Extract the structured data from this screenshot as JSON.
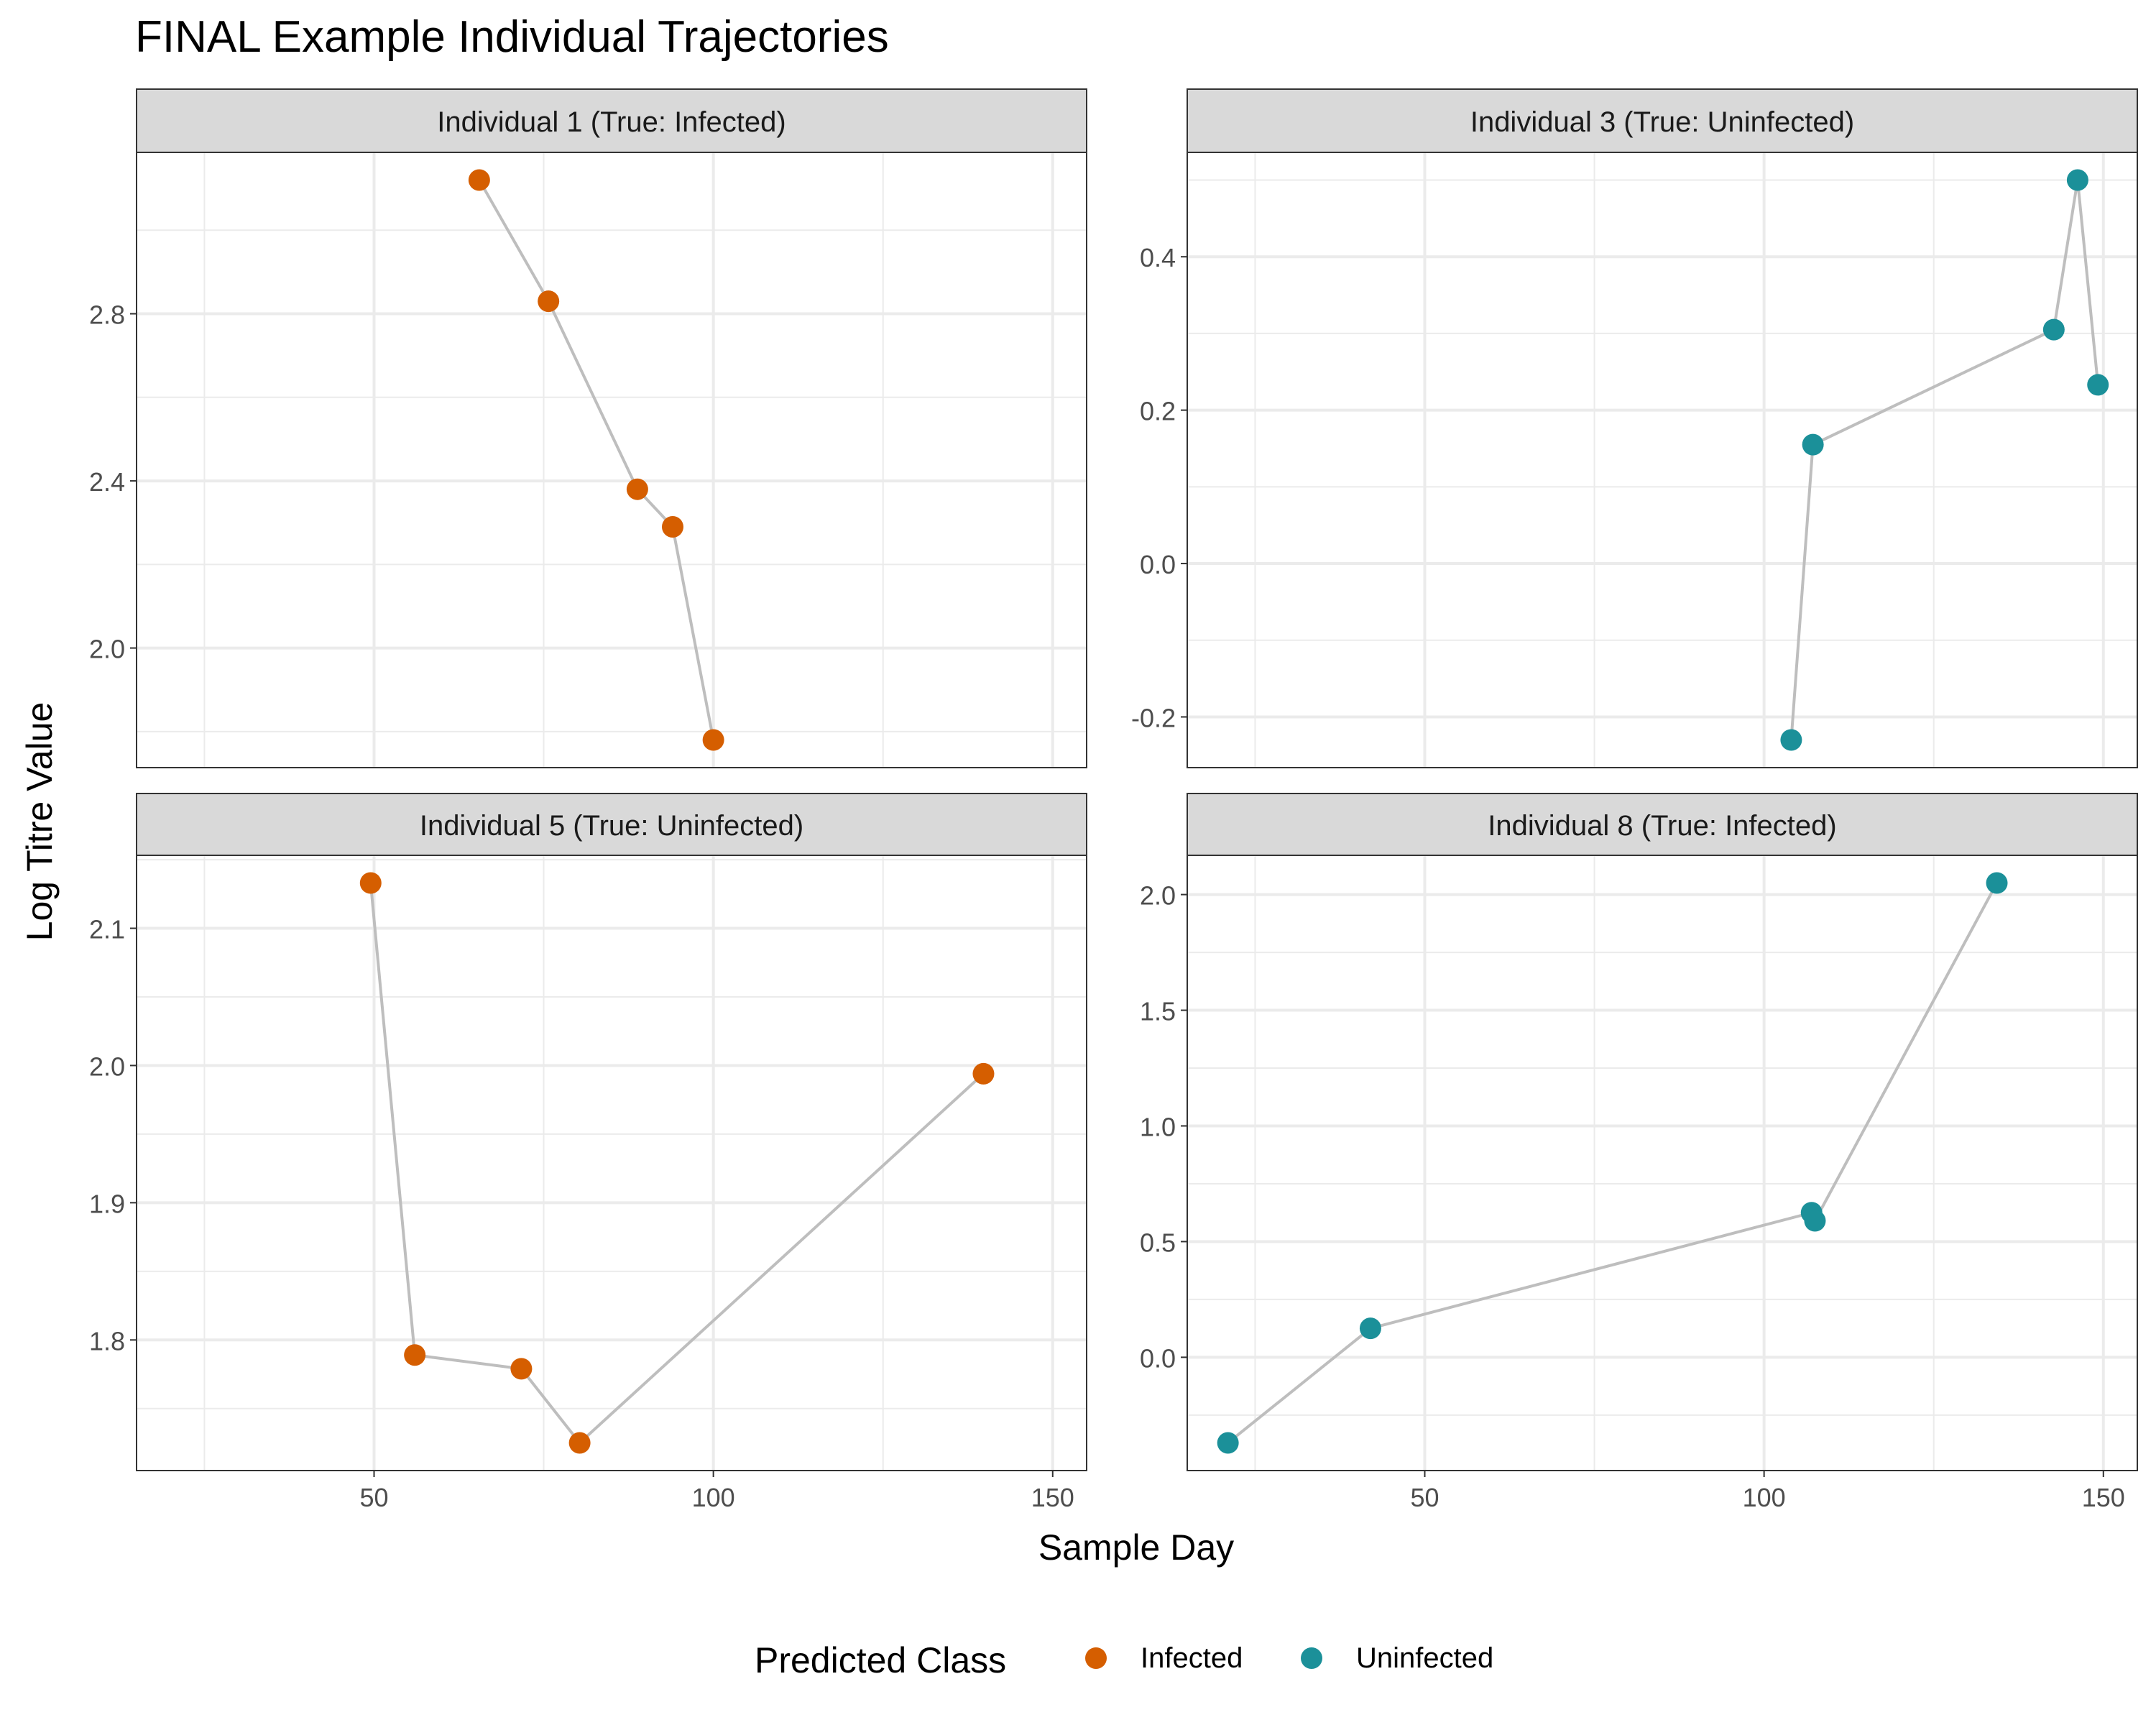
{
  "chart_data": {
    "type": "scatter",
    "title": "FINAL Example Individual Trajectories",
    "xlabel": "Sample Day",
    "ylabel": "Log Titre Value",
    "legend": {
      "title": "Predicted Class",
      "position": "bottom",
      "entries": [
        {
          "label": "Infected",
          "color": "#D55E00"
        },
        {
          "label": "Uninfected",
          "color": "#1B9099"
        }
      ]
    },
    "colors": {
      "Infected": "#D55E00",
      "Uninfected": "#1B9099",
      "line": "#BEBEBE",
      "strip": "#D9D9D9"
    },
    "xlim": [
      15,
      155
    ],
    "x_ticks": [
      50,
      100,
      150
    ],
    "x_tick_labels": [
      "50",
      "100",
      "150"
    ],
    "panels": [
      {
        "title": "Individual 1 (True: Infected)",
        "ylim": [
          1.78,
          3.12
        ],
        "y_ticks": [
          2.0,
          2.4,
          2.8
        ],
        "y_tick_labels": [
          "2.0",
          "2.4",
          "2.8"
        ],
        "points": [
          {
            "x": 65.5,
            "y": 3.12,
            "class": "Infected"
          },
          {
            "x": 75.7,
            "y": 2.83,
            "class": "Infected"
          },
          {
            "x": 88.8,
            "y": 2.38,
            "class": "Infected"
          },
          {
            "x": 94.0,
            "y": 2.29,
            "class": "Infected"
          },
          {
            "x": 100.0,
            "y": 1.78,
            "class": "Infected"
          }
        ]
      },
      {
        "title": "Individual 3 (True: Uninfected)",
        "ylim": [
          -0.23,
          0.5
        ],
        "y_ticks": [
          -0.2,
          0.0,
          0.2,
          0.4
        ],
        "y_tick_labels": [
          "-0.2",
          "0.0",
          "0.2",
          "0.4"
        ],
        "points": [
          {
            "x": 104.0,
            "y": -0.23,
            "class": "Uninfected"
          },
          {
            "x": 107.2,
            "y": 0.155,
            "class": "Uninfected"
          },
          {
            "x": 142.7,
            "y": 0.305,
            "class": "Uninfected"
          },
          {
            "x": 146.2,
            "y": 0.5,
            "class": "Uninfected"
          },
          {
            "x": 149.2,
            "y": 0.233,
            "class": "Uninfected"
          }
        ]
      },
      {
        "title": "Individual 5 (True: Uninfected)",
        "ylim": [
          1.725,
          2.133
        ],
        "y_ticks": [
          1.8,
          1.9,
          2.0,
          2.1
        ],
        "y_tick_labels": [
          "1.8",
          "1.9",
          "2.0",
          "2.1"
        ],
        "points": [
          {
            "x": 49.5,
            "y": 2.133,
            "class": "Infected"
          },
          {
            "x": 56.0,
            "y": 1.789,
            "class": "Infected"
          },
          {
            "x": 71.7,
            "y": 1.779,
            "class": "Infected"
          },
          {
            "x": 80.3,
            "y": 1.725,
            "class": "Infected"
          },
          {
            "x": 139.8,
            "y": 1.994,
            "class": "Infected"
          }
        ]
      },
      {
        "title": "Individual 8 (True: Infected)",
        "ylim": [
          -0.37,
          2.05
        ],
        "y_ticks": [
          0.0,
          0.5,
          1.0,
          1.5,
          2.0
        ],
        "y_tick_labels": [
          "0.0",
          "0.5",
          "1.0",
          "1.5",
          "2.0"
        ],
        "points": [
          {
            "x": 21.0,
            "y": -0.37,
            "class": "Uninfected"
          },
          {
            "x": 42.0,
            "y": 0.125,
            "class": "Uninfected"
          },
          {
            "x": 107.0,
            "y": 0.625,
            "class": "Uninfected"
          },
          {
            "x": 107.5,
            "y": 0.59,
            "class": "Uninfected"
          },
          {
            "x": 134.3,
            "y": 2.05,
            "class": "Uninfected"
          }
        ]
      }
    ]
  }
}
